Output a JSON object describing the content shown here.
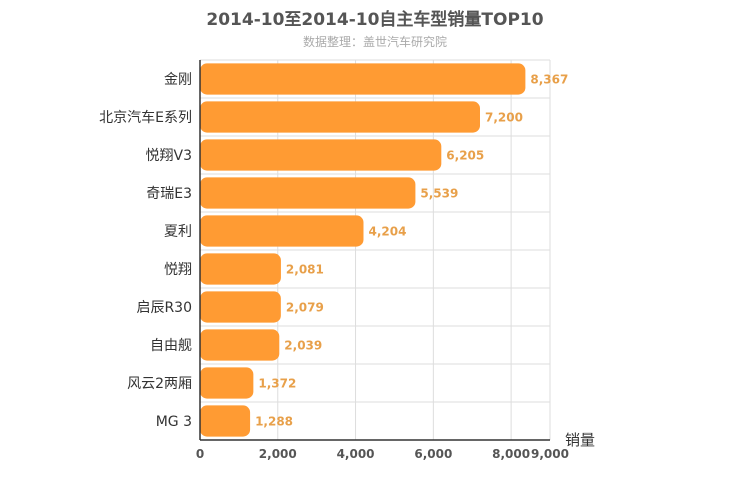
{
  "chart_data": {
    "type": "bar",
    "orientation": "horizontal",
    "title": "2014-10至2014-10自主车型销量TOP10",
    "subtitle": "数据整理：盖世汽车研究院",
    "xlabel": "销量",
    "ylabel": "",
    "categories": [
      "金刚",
      "北京汽车E系列",
      "悦翔V3",
      "奇瑞E3",
      "夏利",
      "悦翔",
      "启辰R30",
      "自由舰",
      "风云2两厢",
      "MG 3"
    ],
    "values": [
      8367,
      7200,
      6205,
      5539,
      4204,
      2081,
      2079,
      2039,
      1372,
      1288
    ],
    "value_labels": [
      "8,367",
      "7,200",
      "6,205",
      "5,539",
      "4,204",
      "2,081",
      "2,079",
      "2,039",
      "1,372",
      "1,288"
    ],
    "xlim": [
      0,
      9000
    ],
    "xticks": [
      0,
      2000,
      4000,
      6000,
      8000,
      9000
    ],
    "xtick_labels": [
      "0",
      "2,000",
      "4,000",
      "6,000",
      "8,000",
      "9,000"
    ],
    "grid": true,
    "legend": "none",
    "colors": {
      "bar": "#ff9b33",
      "value_label": "#e8a04a",
      "grid": "#dddddd",
      "axis": "#333333",
      "title": "#555555",
      "subtitle": "#aaaaaa",
      "text": "#333333"
    }
  }
}
